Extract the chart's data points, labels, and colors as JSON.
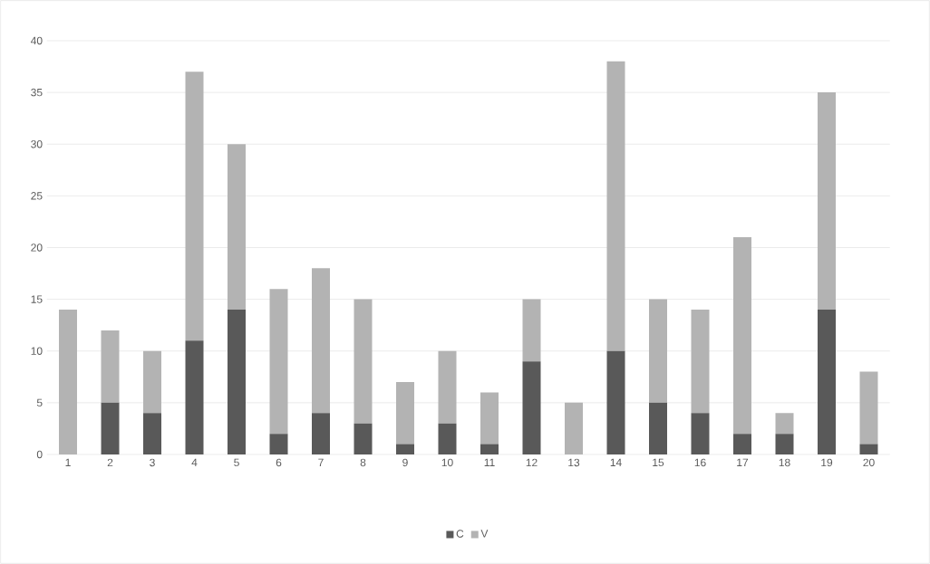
{
  "chart_data": {
    "type": "bar",
    "stacked": true,
    "categories": [
      "1",
      "2",
      "3",
      "4",
      "5",
      "6",
      "7",
      "8",
      "9",
      "10",
      "11",
      "12",
      "13",
      "14",
      "15",
      "16",
      "17",
      "18",
      "19",
      "20"
    ],
    "series": [
      {
        "name": "C",
        "color": "#595959",
        "values": [
          0,
          5,
          4,
          11,
          14,
          2,
          4,
          3,
          1,
          3,
          1,
          9,
          0,
          10,
          5,
          4,
          2,
          2,
          14,
          1
        ]
      },
      {
        "name": "V",
        "color": "#b3b3b3",
        "values": [
          14,
          7,
          6,
          26,
          16,
          14,
          14,
          12,
          6,
          7,
          5,
          6,
          5,
          28,
          10,
          10,
          19,
          2,
          21,
          7
        ]
      }
    ],
    "ylim": [
      0,
      40
    ],
    "yticks": [
      0,
      5,
      10,
      15,
      20,
      25,
      30,
      35,
      40
    ],
    "grid": "y",
    "legend": "bottom"
  }
}
